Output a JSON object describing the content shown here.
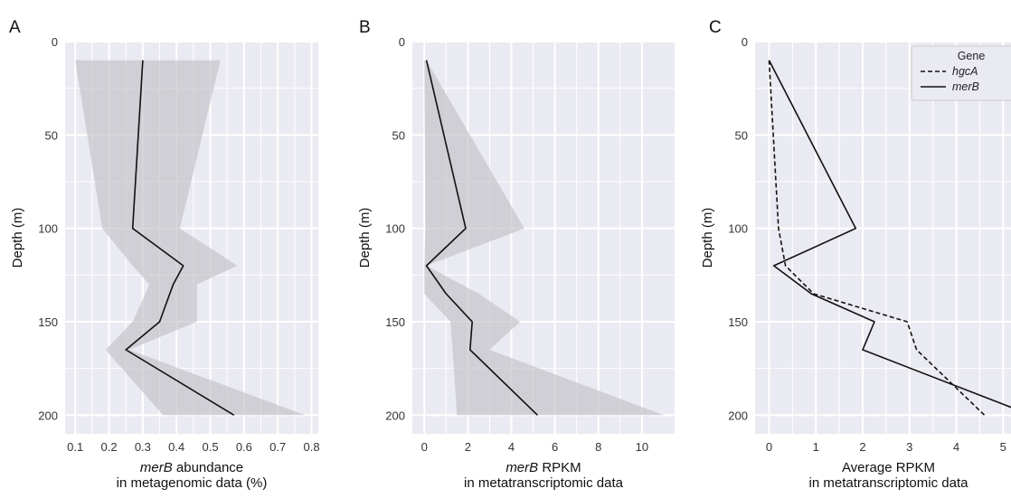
{
  "colors": {
    "panel_bg": "#EAEAF2",
    "grid": "#FFFFFF",
    "band": "#BDBDC2",
    "line": "#111111"
  },
  "chart_data": [
    {
      "panel_label": "A",
      "type": "line",
      "orientation": "depth-profile",
      "xlabel_italic": "merB",
      "xlabel_rest": " abundance",
      "xlabel_line2": "in metagenomic data (%)",
      "ylabel": "Depth (m)",
      "xlim": [
        0.07,
        0.82
      ],
      "ylim": [
        0,
        210
      ],
      "y_inverted": true,
      "xticks": [
        0.1,
        0.2,
        0.3,
        0.4,
        0.5,
        0.6,
        0.7,
        0.8
      ],
      "xtick_labels": [
        "0.1",
        "0.2",
        "0.3",
        "0.4",
        "0.5",
        "0.6",
        "0.7",
        "0.8"
      ],
      "yticks": [
        0,
        50,
        100,
        150,
        200
      ],
      "ytick_labels": [
        "0",
        "50",
        "100",
        "150",
        "200"
      ],
      "grid": true,
      "series": [
        {
          "gene": "merB",
          "style": "solid",
          "depth": [
            10,
            100,
            120,
            130,
            150,
            165,
            200
          ],
          "value": [
            0.3,
            0.27,
            0.42,
            0.39,
            0.35,
            0.25,
            0.57
          ],
          "band_low": [
            0.1,
            0.18,
            0.27,
            0.32,
            0.27,
            0.19,
            0.36
          ],
          "band_high": [
            0.53,
            0.41,
            0.58,
            0.46,
            0.46,
            0.26,
            0.78
          ]
        }
      ]
    },
    {
      "panel_label": "B",
      "type": "line",
      "orientation": "depth-profile",
      "xlabel_italic": "merB",
      "xlabel_rest": " RPKM",
      "xlabel_line2": "in metatranscriptomic data",
      "ylabel": "Depth (m)",
      "xlim": [
        -0.55,
        11.5
      ],
      "ylim": [
        0,
        210
      ],
      "y_inverted": true,
      "xticks": [
        0,
        2,
        4,
        6,
        8,
        10
      ],
      "xtick_labels": [
        "0",
        "2",
        "4",
        "6",
        "8",
        "10"
      ],
      "yticks": [
        0,
        50,
        100,
        150,
        200
      ],
      "ytick_labels": [
        "0",
        "50",
        "100",
        "150",
        "200"
      ],
      "grid": true,
      "series": [
        {
          "gene": "merB",
          "style": "solid",
          "depth": [
            10,
            100,
            120,
            135,
            150,
            165,
            200
          ],
          "value": [
            0.1,
            1.9,
            0.1,
            1.0,
            2.2,
            2.1,
            5.2
          ],
          "band_low": [
            0.0,
            0.05,
            0.0,
            0.0,
            1.2,
            1.3,
            1.5
          ],
          "band_high": [
            0.1,
            4.6,
            0.1,
            2.5,
            4.4,
            3.0,
            11.0
          ]
        }
      ]
    },
    {
      "panel_label": "C",
      "type": "line",
      "orientation": "depth-profile",
      "xlabel": "Average RPKM",
      "xlabel_line2": "in metatranscriptomic data",
      "ylabel": "Depth (m)",
      "xlim": [
        -0.3,
        5.4
      ],
      "ylim": [
        0,
        210
      ],
      "y_inverted": true,
      "xticks": [
        0,
        1,
        2,
        3,
        4,
        5
      ],
      "xtick_labels": [
        "0",
        "1",
        "2",
        "3",
        "4",
        "5"
      ],
      "yticks": [
        0,
        50,
        100,
        150,
        200
      ],
      "ytick_labels": [
        "0",
        "50",
        "100",
        "150",
        "200"
      ],
      "grid": true,
      "legend": {
        "title": "Gene",
        "placement": "top-right",
        "entries": [
          {
            "label": "hgcA",
            "style": "dashed"
          },
          {
            "label": "merB",
            "style": "solid"
          }
        ]
      },
      "series": [
        {
          "name": "hgcA",
          "style": "dashed",
          "depth": [
            10,
            100,
            120,
            135,
            150,
            165,
            200
          ],
          "value": [
            0.0,
            0.2,
            0.35,
            0.95,
            2.95,
            3.15,
            4.6
          ]
        },
        {
          "name": "merB",
          "style": "solid",
          "depth": [
            10,
            100,
            120,
            135,
            150,
            165,
            200
          ],
          "value": [
            0.0,
            1.85,
            0.1,
            0.9,
            2.25,
            2.0,
            5.6
          ]
        }
      ]
    }
  ]
}
